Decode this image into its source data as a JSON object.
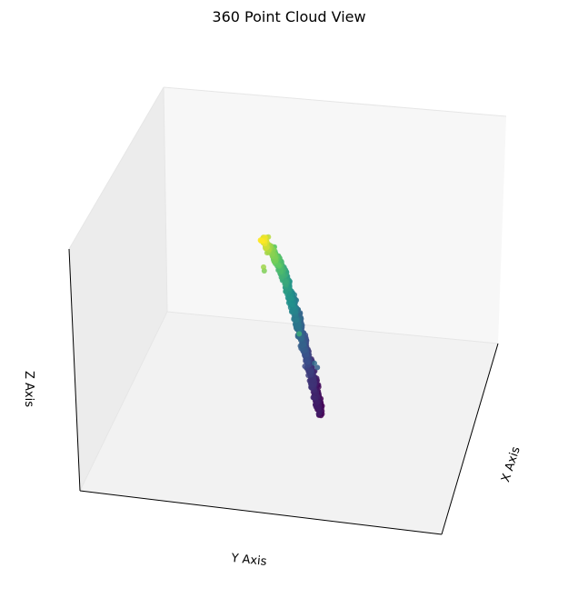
{
  "chart_data": {
    "type": "scatter",
    "projection": "3d",
    "title": "360 Point Cloud View",
    "xlabel": "X Axis",
    "ylabel": "Y Axis",
    "zlabel": "Z Axis",
    "ticks": false,
    "grid": false,
    "colormap": "viridis",
    "color_by": "x",
    "points_description": "elongated tilted point cloud",
    "series": [
      {
        "points": [
          [
            0.96,
            0.18,
            0.93
          ],
          [
            0.9,
            0.15,
            0.9
          ],
          [
            0.82,
            0.2,
            0.88
          ],
          [
            0.76,
            0.26,
            0.85
          ],
          [
            0.72,
            0.3,
            0.83
          ],
          [
            0.66,
            0.32,
            0.8
          ],
          [
            0.6,
            0.35,
            0.76
          ],
          [
            0.55,
            0.38,
            0.72
          ],
          [
            0.5,
            0.4,
            0.68
          ],
          [
            0.46,
            0.43,
            0.64
          ],
          [
            0.42,
            0.46,
            0.6
          ],
          [
            0.38,
            0.48,
            0.56
          ],
          [
            0.34,
            0.5,
            0.52
          ],
          [
            0.3,
            0.52,
            0.48
          ],
          [
            0.27,
            0.55,
            0.44
          ],
          [
            0.24,
            0.58,
            0.4
          ],
          [
            0.2,
            0.6,
            0.36
          ],
          [
            0.17,
            0.62,
            0.32
          ],
          [
            0.14,
            0.65,
            0.28
          ],
          [
            0.11,
            0.68,
            0.24
          ],
          [
            0.08,
            0.7,
            0.2
          ],
          [
            0.06,
            0.72,
            0.16
          ],
          [
            0.04,
            0.75,
            0.12
          ],
          [
            0.02,
            0.78,
            0.08
          ]
        ]
      }
    ]
  }
}
